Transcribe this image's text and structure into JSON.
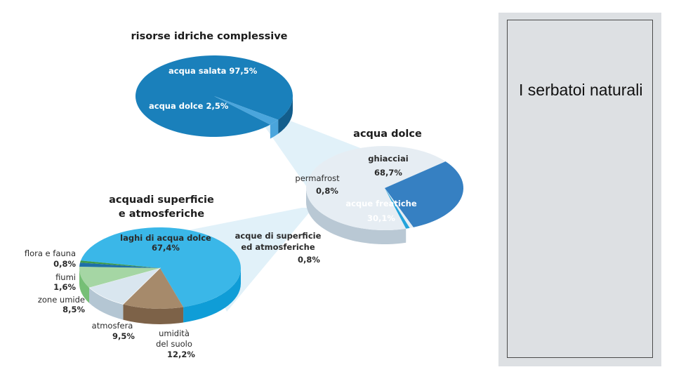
{
  "side_panel": {
    "title": "I serbatoi naturali"
  },
  "colors": {
    "salt": "#1a80bb",
    "salt_side": "#125d8c",
    "fresh_wedge": "#4aa5dc",
    "ice": "#e6edf3",
    "ice_side": "#b9c8d4",
    "ground": "#3680c2",
    "ground_side": "#2a5f91",
    "surface_wedge": "#23a3db",
    "lakes": "#3ab7e8",
    "lakes_side": "#0f9dd7",
    "moisture": "#a68a6b",
    "moisture_side": "#7d6248",
    "atmos": "#d9e6ef",
    "atmos_side": "#b4c6d3",
    "wetlands": "#a5d6a4",
    "wetlands_side": "#76bf76",
    "rivers": "#1e6fa8",
    "flora": "#3d9a4a",
    "beam": "#c9e5f4"
  },
  "chart_data": [
    {
      "type": "pie",
      "title": "risorse idriche complessive",
      "slices": [
        {
          "label": "acqua salata",
          "value": 97.5,
          "display": "acqua salata 97,5%"
        },
        {
          "label": "acqua dolce",
          "value": 2.5,
          "display": "acqua dolce 2,5%"
        }
      ]
    },
    {
      "type": "pie",
      "title": "acqua dolce",
      "slices": [
        {
          "label": "ghiacciai",
          "value": 68.7,
          "display": "68,7%"
        },
        {
          "label": "acque freatiche",
          "value": 30.1,
          "display": "30,1%"
        },
        {
          "label": "permafrost",
          "value": 0.8,
          "display": "0,8%"
        },
        {
          "label": "acque di superficie ed atmosferiche",
          "label_lines": [
            "acque di superficie",
            "ed atmosferiche"
          ],
          "value": 0.8,
          "display": "0,8%"
        }
      ]
    },
    {
      "type": "pie",
      "title": "acquadi superficie e atmosferiche",
      "title_lines": [
        "acquadi superficie",
        "e atmosferiche"
      ],
      "slices": [
        {
          "label": "laghi di acqua dolce",
          "value": 67.4,
          "display": "67,4%"
        },
        {
          "label": "umidità del suolo",
          "label_lines": [
            "umidità",
            "del suolo"
          ],
          "value": 12.2,
          "display": "12,2%"
        },
        {
          "label": "atmosfera",
          "value": 9.5,
          "display": "9,5%"
        },
        {
          "label": "zone umide",
          "value": 8.5,
          "display": "8,5%"
        },
        {
          "label": "fiumi",
          "value": 1.6,
          "display": "1,6%"
        },
        {
          "label": "flora e fauna",
          "value": 0.8,
          "display": "0,8%"
        }
      ]
    }
  ]
}
